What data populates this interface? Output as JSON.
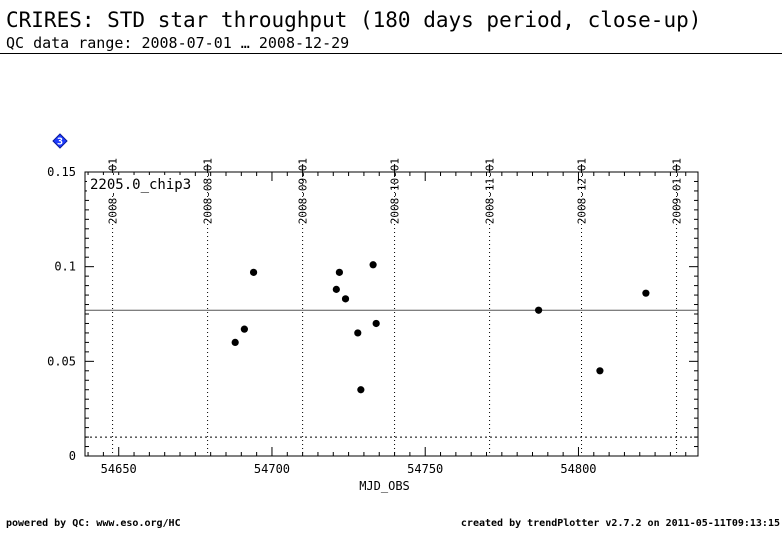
{
  "header": {
    "title": "CRIRES: STD star throughput (180 days period, close-up)",
    "subtitle": "QC data range: 2008-07-01 … 2008-12-29"
  },
  "footer": {
    "left": "powered by QC: www.eso.org/HC",
    "right": "created by trendPlotter v2.7.2 on 2011-05-11T09:13:15"
  },
  "badge": {
    "label": "3",
    "color": "#1e3cff"
  },
  "chart_data": {
    "type": "scatter",
    "title": "",
    "panel_label": "2205.0_chip3",
    "xlabel": "MJD_OBS",
    "ylabel": "",
    "xlim": [
      54639,
      54839
    ],
    "ylim": [
      0,
      0.15
    ],
    "x_ticks": [
      54650,
      54700,
      54750,
      54800
    ],
    "y_ticks": [
      0,
      0.05,
      0.1,
      0.15
    ],
    "y_tick_labels": [
      "0",
      "0.05",
      "0.1",
      "0.15"
    ],
    "top_date_ticks": [
      {
        "mjd": 54648,
        "label": "2008-07-01"
      },
      {
        "mjd": 54679,
        "label": "2008-08-01"
      },
      {
        "mjd": 54710,
        "label": "2008-09-01"
      },
      {
        "mjd": 54740,
        "label": "2008-10-01"
      },
      {
        "mjd": 54771,
        "label": "2008-11-01"
      },
      {
        "mjd": 54801,
        "label": "2008-12-01"
      },
      {
        "mjd": 54832,
        "label": "2009-01-01"
      }
    ],
    "reference_line": 0.077,
    "lower_threshold": 0.01,
    "points": [
      {
        "x": 54688,
        "y": 0.06
      },
      {
        "x": 54691,
        "y": 0.067
      },
      {
        "x": 54694,
        "y": 0.097
      },
      {
        "x": 54721,
        "y": 0.088
      },
      {
        "x": 54722,
        "y": 0.097
      },
      {
        "x": 54724,
        "y": 0.083
      },
      {
        "x": 54728,
        "y": 0.065
      },
      {
        "x": 54729,
        "y": 0.035
      },
      {
        "x": 54733,
        "y": 0.101
      },
      {
        "x": 54734,
        "y": 0.07
      },
      {
        "x": 54787,
        "y": 0.077
      },
      {
        "x": 54807,
        "y": 0.045
      },
      {
        "x": 54822,
        "y": 0.086
      }
    ],
    "marker_color": "#000000",
    "grid": "vertical dotted at month boundaries"
  }
}
